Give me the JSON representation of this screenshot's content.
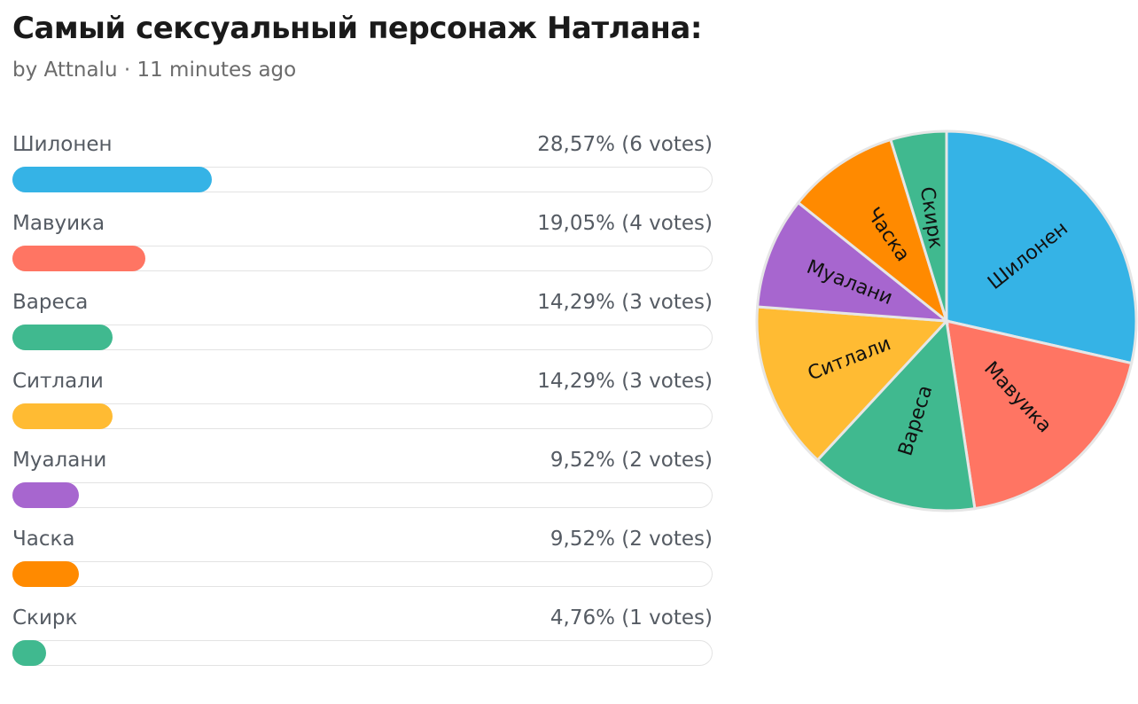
{
  "poll": {
    "title": "Самый сексуальный персонаж Натлана:",
    "meta": "by Attnalu · 11 minutes ago"
  },
  "options": [
    {
      "label": "Шилонен",
      "result": "28,57% (6 votes)",
      "percent": 28.57,
      "votes": 6,
      "color": "#35b3e6"
    },
    {
      "label": "Мавуика",
      "result": "19,05% (4 votes)",
      "percent": 19.05,
      "votes": 4,
      "color": "#ff7563"
    },
    {
      "label": "Вареса",
      "result": "14,29% (3 votes)",
      "percent": 14.29,
      "votes": 3,
      "color": "#40b98f"
    },
    {
      "label": "Ситлали",
      "result": "14,29% (3 votes)",
      "percent": 14.29,
      "votes": 3,
      "color": "#ffbb33"
    },
    {
      "label": "Муалани",
      "result": "9,52% (2 votes)",
      "percent": 9.52,
      "votes": 2,
      "color": "#a766cf"
    },
    {
      "label": "Часка",
      "result": "9,52% (2 votes)",
      "percent": 9.52,
      "votes": 2,
      "color": "#ff8a00"
    },
    {
      "label": "Скирк",
      "result": "4,76% (1 votes)",
      "percent": 4.76,
      "votes": 1,
      "color": "#40b98f"
    }
  ],
  "chart_data": {
    "type": "pie",
    "categories": [
      "Шилонен",
      "Мавуика",
      "Вареса",
      "Ситлали",
      "Муалани",
      "Часка",
      "Скирк"
    ],
    "values": [
      6,
      4,
      3,
      3,
      2,
      2,
      1
    ],
    "colors": [
      "#35b3e6",
      "#ff7563",
      "#40b98f",
      "#ffbb33",
      "#a766cf",
      "#ff8a00",
      "#40b98f"
    ]
  }
}
